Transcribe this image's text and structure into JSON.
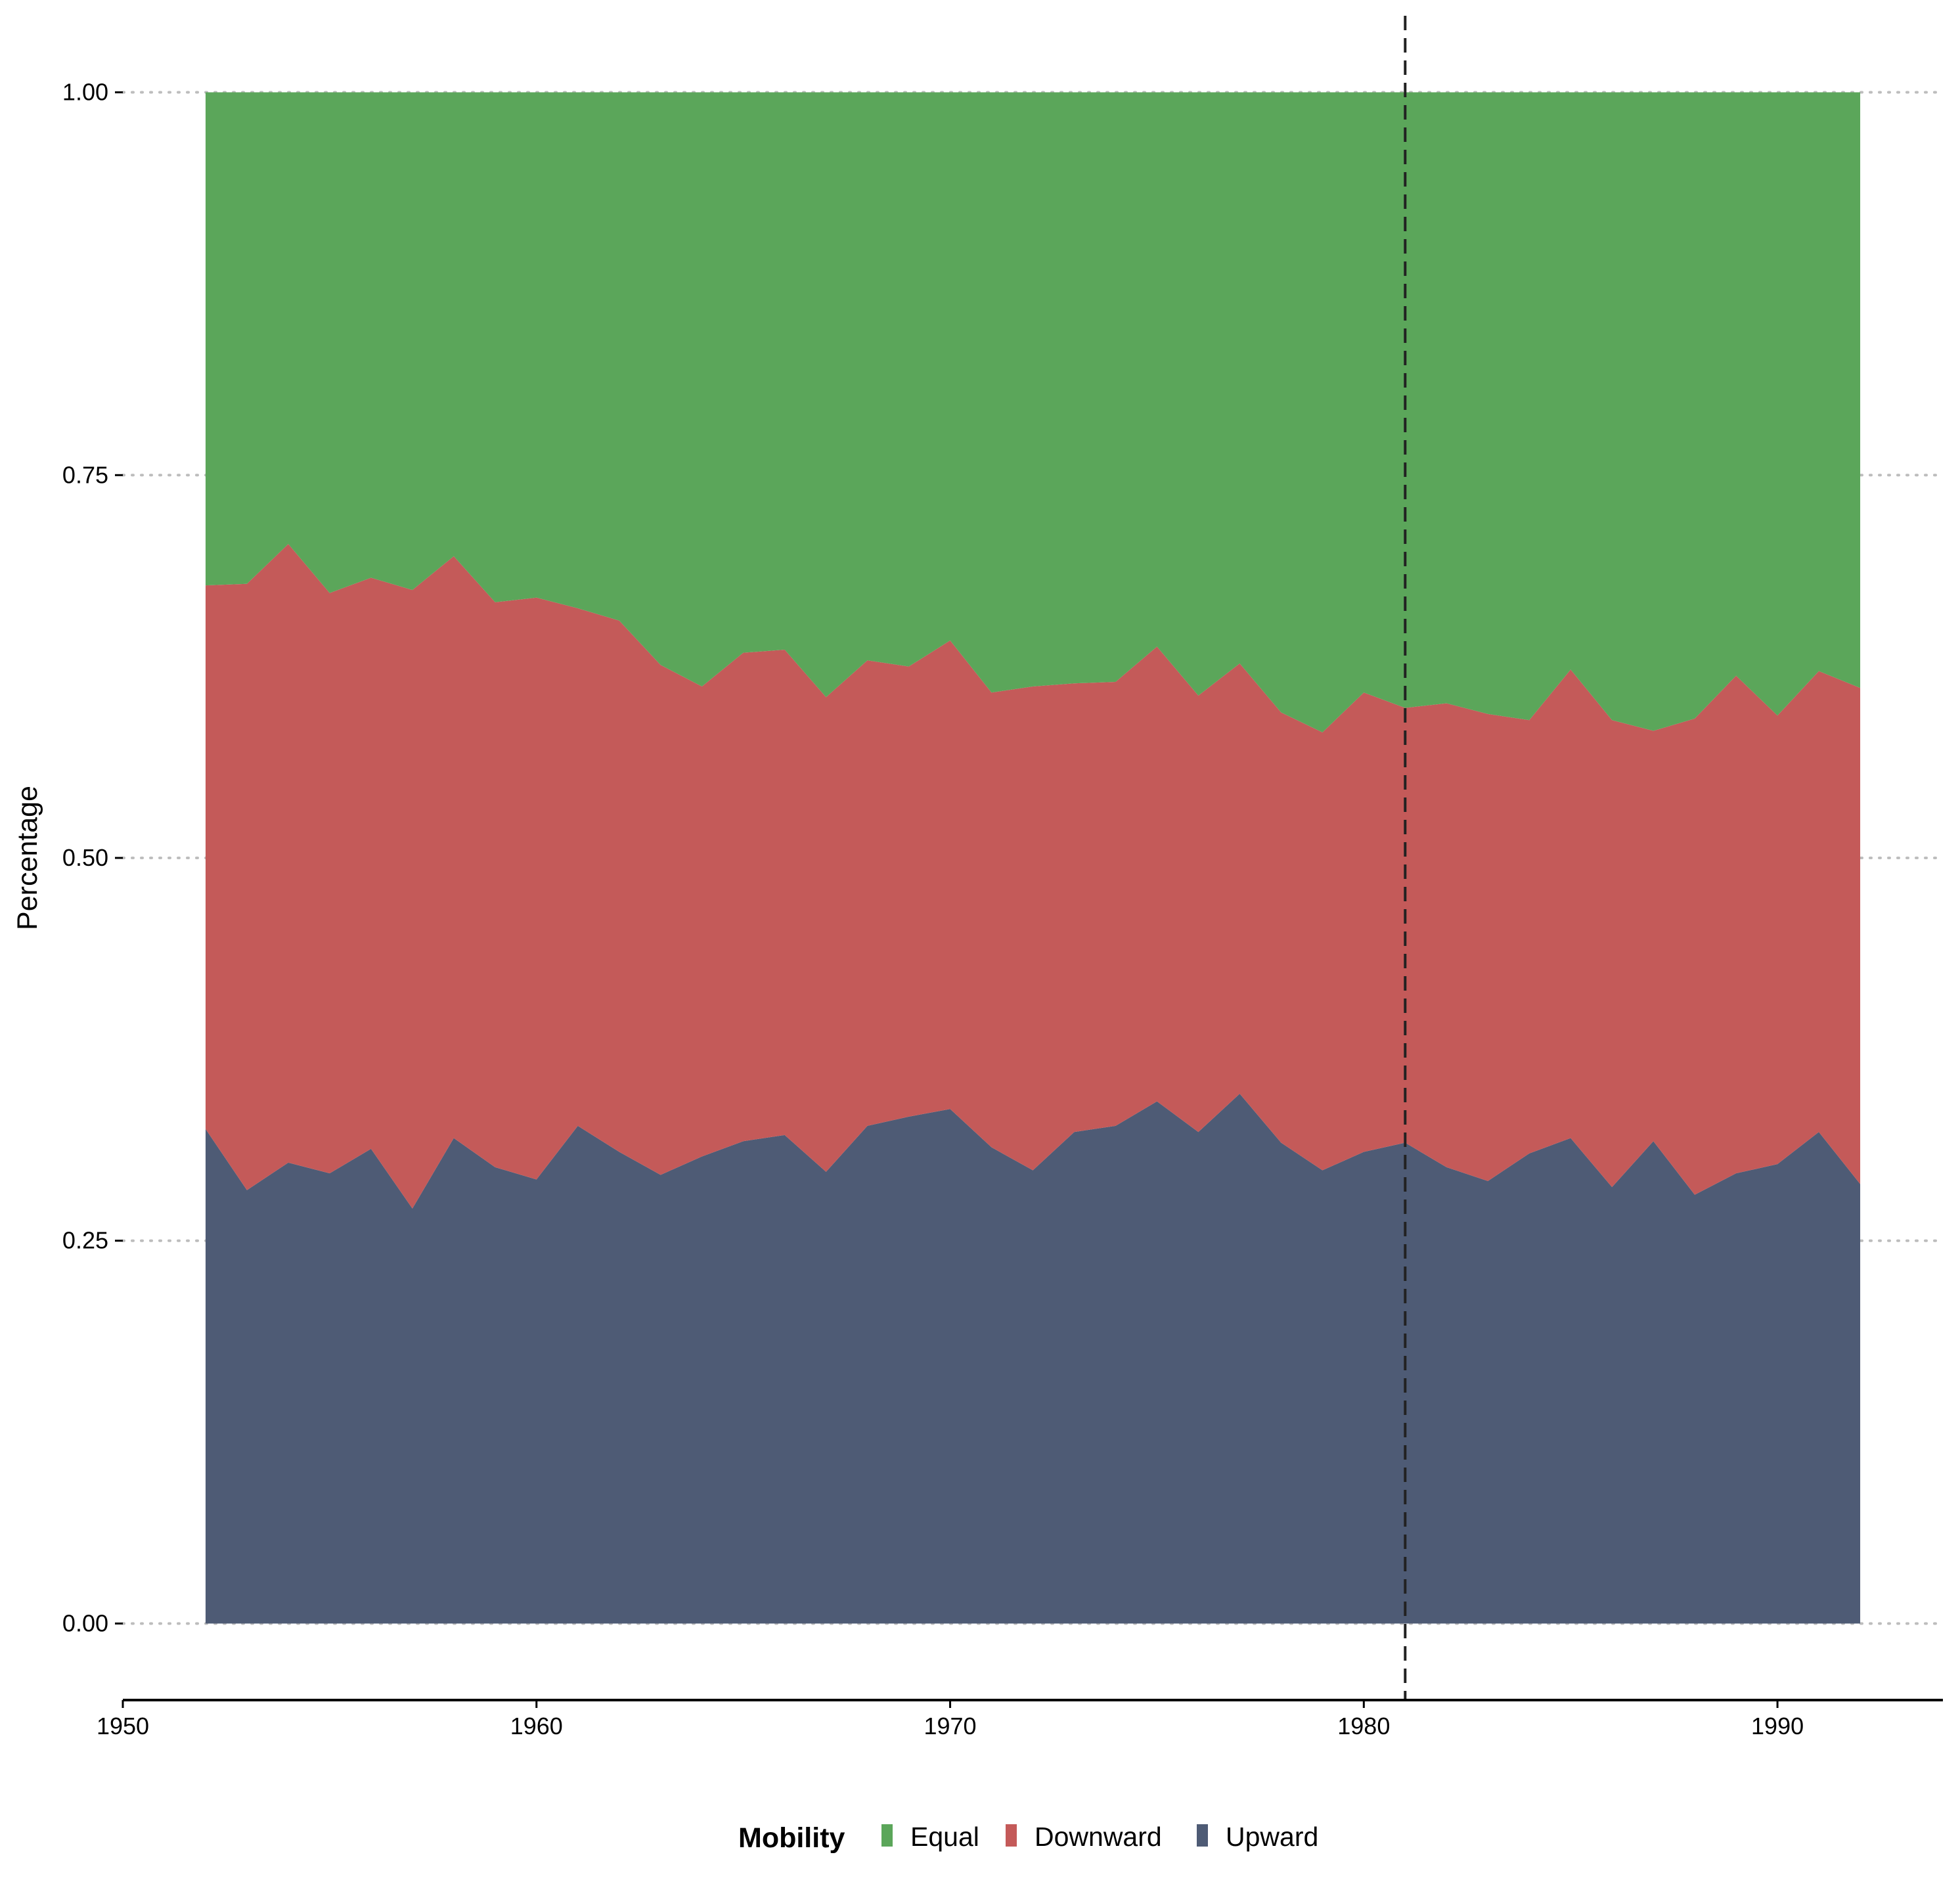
{
  "chart_data": {
    "type": "area",
    "stacked": true,
    "title": "",
    "xlabel": "",
    "ylabel": "Percentage",
    "xlim": [
      1950,
      1994
    ],
    "ylim": [
      -0.05,
      1.05
    ],
    "x_ticks": [
      "1950",
      "1960",
      "1970",
      "1980",
      "1990"
    ],
    "y_ticks": [
      "0.00",
      "0.25",
      "0.50",
      "0.75",
      "1.00"
    ],
    "grid": "horizontal dotted",
    "reference_line": {
      "x": 1981,
      "style": "dashed"
    },
    "x": [
      1952,
      1953,
      1954,
      1955,
      1956,
      1957,
      1958,
      1959,
      1960,
      1961,
      1962,
      1963,
      1964,
      1965,
      1966,
      1967,
      1968,
      1969,
      1970,
      1971,
      1972,
      1973,
      1974,
      1975,
      1976,
      1977,
      1978,
      1979,
      1980,
      1981,
      1982,
      1983,
      1984,
      1985,
      1986,
      1987,
      1988,
      1989,
      1990,
      1991,
      1992
    ],
    "series": [
      {
        "name": "Upward",
        "color": "#4e5b75",
        "values": [
          0.323,
          0.283,
          0.301,
          0.294,
          0.31,
          0.271,
          0.317,
          0.298,
          0.29,
          0.325,
          0.308,
          0.293,
          0.305,
          0.315,
          0.319,
          0.295,
          0.325,
          0.331,
          0.336,
          0.311,
          0.296,
          0.321,
          0.325,
          0.341,
          0.321,
          0.346,
          0.314,
          0.296,
          0.308,
          0.314,
          0.298,
          0.289,
          0.307,
          0.317,
          0.285,
          0.315,
          0.28,
          0.294,
          0.3,
          0.321,
          0.287
        ]
      },
      {
        "name": "Downward",
        "color": "#c45a59",
        "values": [
          0.355,
          0.396,
          0.404,
          0.379,
          0.373,
          0.404,
          0.38,
          0.369,
          0.38,
          0.338,
          0.347,
          0.333,
          0.307,
          0.319,
          0.317,
          0.31,
          0.304,
          0.294,
          0.306,
          0.297,
          0.316,
          0.293,
          0.29,
          0.297,
          0.285,
          0.281,
          0.281,
          0.286,
          0.3,
          0.284,
          0.303,
          0.305,
          0.283,
          0.306,
          0.305,
          0.268,
          0.311,
          0.325,
          0.293,
          0.301,
          0.324
        ]
      },
      {
        "name": "Equal",
        "color": "#5ba65a",
        "values": [
          0.322,
          0.321,
          0.295,
          0.327,
          0.317,
          0.325,
          0.303,
          0.333,
          0.33,
          0.337,
          0.345,
          0.374,
          0.388,
          0.366,
          0.364,
          0.395,
          0.371,
          0.375,
          0.358,
          0.392,
          0.388,
          0.386,
          0.385,
          0.362,
          0.394,
          0.373,
          0.405,
          0.418,
          0.392,
          0.402,
          0.399,
          0.406,
          0.41,
          0.377,
          0.41,
          0.417,
          0.409,
          0.381,
          0.407,
          0.378,
          0.389
        ]
      }
    ],
    "legend": {
      "title": "Mobility",
      "position": "bottom",
      "entries": [
        "Equal",
        "Downward",
        "Upward"
      ]
    }
  }
}
